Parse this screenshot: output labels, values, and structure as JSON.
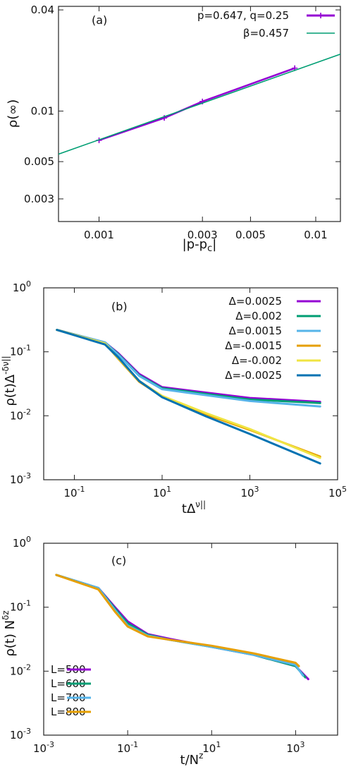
{
  "chart_data": [
    {
      "type": "line",
      "panel_label": "(a)",
      "x_scale": "log",
      "y_scale": "log",
      "xlim": [
        0.00065,
        0.013
      ],
      "ylim": [
        0.0022,
        0.042
      ],
      "xticks": [
        0.001,
        0.003,
        0.005,
        0.01
      ],
      "xtick_labels": [
        "0.001",
        "0.003",
        "0.005",
        "0.01"
      ],
      "yticks": [
        0.003,
        0.005,
        0.01,
        0.04
      ],
      "ytick_labels": [
        "0.003",
        "0.005",
        "0.01",
        "0.04"
      ],
      "xlabel": "|p-p",
      "xlabel_sub": "c",
      "xlabel_end": "|",
      "ylabel": "ρ(∞)",
      "legend_position": "top-right",
      "series": [
        {
          "name": "p=0.647, q=0.25",
          "color": "#9400d3",
          "marker": "plus",
          "x": [
            0.001,
            0.002,
            0.003,
            0.008
          ],
          "y": [
            0.0067,
            0.0091,
            0.0114,
            0.018
          ]
        },
        {
          "name": "β=0.457",
          "color": "#009e73",
          "style": "fit",
          "x": [
            0.00065,
            0.013
          ],
          "y": [
            0.00554,
            0.0218
          ]
        }
      ]
    },
    {
      "type": "line",
      "panel_label": "(b)",
      "x_scale": "log",
      "y_scale": "log",
      "xlim": [
        0.02,
        100000
      ],
      "ylim": [
        0.001,
        1
      ],
      "xticks": [
        0.1,
        10,
        1000,
        100000
      ],
      "xtick_labels": [
        [
          "10",
          "-1"
        ],
        [
          "10",
          "1"
        ],
        [
          "10",
          "3"
        ],
        [
          "10",
          "5"
        ]
      ],
      "yticks": [
        0.001,
        0.01,
        0.1,
        1
      ],
      "ytick_labels": [
        [
          "10",
          "-3"
        ],
        [
          "10",
          "-2"
        ],
        [
          "10",
          "-1"
        ],
        [
          "10",
          "0"
        ]
      ],
      "xlabel": "tΔ",
      "xlabel_sup": "ν||",
      "ylabel": "ρ(t)Δ",
      "ylabel_sup": "-δν||",
      "legend_position": "top-right",
      "series": [
        {
          "name": "Δ=0.0025",
          "color": "#9400d3",
          "x": [
            0.04,
            0.5,
            1,
            3,
            10,
            100,
            1000,
            40000
          ],
          "y": [
            0.22,
            0.14,
            0.095,
            0.045,
            0.028,
            0.023,
            0.019,
            0.0165
          ]
        },
        {
          "name": "Δ=0.002",
          "color": "#009e73",
          "x": [
            0.04,
            0.5,
            1,
            3,
            10,
            100,
            1000,
            40000
          ],
          "y": [
            0.22,
            0.14,
            0.092,
            0.043,
            0.027,
            0.022,
            0.018,
            0.0158
          ]
        },
        {
          "name": "Δ=0.0015",
          "color": "#56b4e9",
          "x": [
            0.04,
            0.5,
            1,
            3,
            10,
            100,
            1000,
            40000
          ],
          "y": [
            0.22,
            0.14,
            0.09,
            0.042,
            0.026,
            0.021,
            0.017,
            0.014
          ]
        },
        {
          "name": "Δ=-0.0015",
          "color": "#e69f00",
          "x": [
            0.04,
            0.5,
            1,
            3,
            10,
            100,
            1000,
            40000
          ],
          "y": [
            0.22,
            0.135,
            0.078,
            0.034,
            0.02,
            0.0105,
            0.006,
            0.0023
          ]
        },
        {
          "name": "Δ=-0.002",
          "color": "#f0e442",
          "x": [
            0.04,
            0.5,
            1,
            3,
            10,
            100,
            1000,
            40000
          ],
          "y": [
            0.22,
            0.135,
            0.08,
            0.035,
            0.0205,
            0.011,
            0.0062,
            0.0022
          ]
        },
        {
          "name": "Δ=-0.0025",
          "color": "#0072b2",
          "x": [
            0.04,
            0.5,
            1,
            3,
            10,
            100,
            1000,
            40000
          ],
          "y": [
            0.22,
            0.13,
            0.082,
            0.035,
            0.0195,
            0.0098,
            0.0052,
            0.0018
          ]
        }
      ]
    },
    {
      "type": "line",
      "panel_label": "(c)",
      "x_scale": "log",
      "y_scale": "log",
      "xlim": [
        0.001,
        10000
      ],
      "ylim": [
        0.001,
        1
      ],
      "xticks": [
        0.001,
        0.1,
        10,
        1000
      ],
      "xtick_labels": [
        [
          "10",
          "-3"
        ],
        [
          "10",
          "-1"
        ],
        [
          "10",
          "1"
        ],
        [
          "10",
          "3"
        ]
      ],
      "yticks": [
        0.001,
        0.01,
        0.1,
        1
      ],
      "ytick_labels": [
        [
          "10",
          "-3"
        ],
        [
          "10",
          "-2"
        ],
        [
          "10",
          "-1"
        ],
        [
          "10",
          "0"
        ]
      ],
      "xlabel": "t/N",
      "xlabel_sup": "z",
      "ylabel": "ρ(t) N",
      "ylabel_sup": "δz",
      "legend_position": "bottom-left",
      "series": [
        {
          "name": "L=500",
          "color": "#9400d3",
          "x": [
            0.002,
            0.02,
            0.05,
            0.1,
            0.3,
            1,
            10,
            100,
            1000,
            2000
          ],
          "y": [
            0.32,
            0.2,
            0.1,
            0.06,
            0.038,
            0.032,
            0.024,
            0.018,
            0.012,
            0.0075
          ]
        },
        {
          "name": "L=600",
          "color": "#009e73",
          "x": [
            0.002,
            0.02,
            0.05,
            0.1,
            0.3,
            1,
            10,
            100,
            1000,
            1700
          ],
          "y": [
            0.32,
            0.2,
            0.095,
            0.056,
            0.037,
            0.031,
            0.024,
            0.018,
            0.012,
            0.008
          ]
        },
        {
          "name": "L=700",
          "color": "#56b4e9",
          "x": [
            0.002,
            0.02,
            0.05,
            0.1,
            0.3,
            1,
            10,
            100,
            1000,
            1500
          ],
          "y": [
            0.32,
            0.2,
            0.09,
            0.052,
            0.036,
            0.031,
            0.024,
            0.018,
            0.0125,
            0.0085
          ]
        },
        {
          "name": "L=800",
          "color": "#e69f00",
          "x": [
            0.002,
            0.02,
            0.05,
            0.1,
            0.3,
            1,
            10,
            100,
            1000,
            1200
          ],
          "y": [
            0.32,
            0.19,
            0.085,
            0.05,
            0.035,
            0.031,
            0.025,
            0.019,
            0.0135,
            0.012
          ]
        }
      ]
    }
  ]
}
